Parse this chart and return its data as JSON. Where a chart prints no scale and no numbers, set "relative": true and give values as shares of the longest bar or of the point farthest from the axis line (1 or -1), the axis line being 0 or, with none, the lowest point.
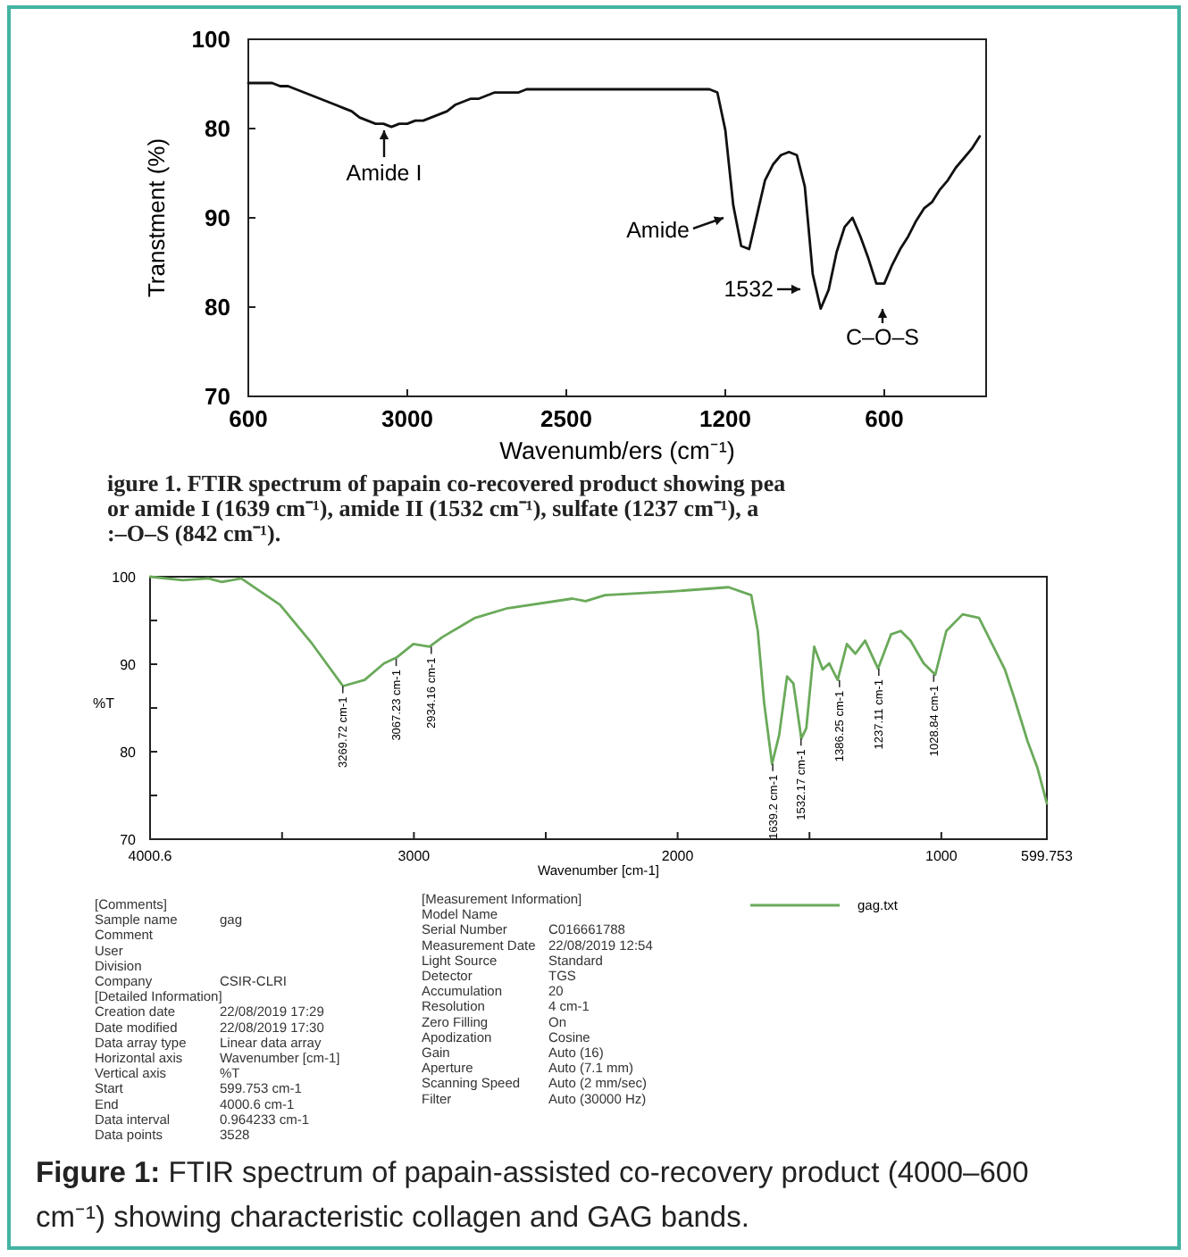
{
  "chart_data": [
    {
      "type": "line",
      "xlabel": "Wavenumb/ers (cm⁻¹)",
      "ylabel": "Transtment (%)",
      "relative": true,
      "categories": [
        "600",
        null,
        null,
        null,
        null,
        null,
        null,
        null,
        null,
        null,
        null,
        null,
        null,
        null,
        null,
        null,
        null,
        null,
        null,
        null,
        "3000",
        null,
        null,
        null,
        null,
        null,
        null,
        null,
        null,
        null,
        null,
        null,
        null,
        null,
        null,
        null,
        null,
        null,
        null,
        null,
        "2500",
        null,
        null,
        null,
        null,
        null,
        null,
        null,
        null,
        null,
        null,
        null,
        null,
        null,
        null,
        null,
        null,
        null,
        null,
        null,
        "1200",
        null,
        null,
        null,
        null,
        null,
        null,
        null,
        null,
        null,
        null,
        null,
        null,
        null,
        null,
        null,
        null,
        null,
        null,
        null,
        "600",
        null,
        null,
        null,
        null,
        null,
        null,
        null,
        null,
        null,
        null,
        null,
        null
      ],
      "series": [
        {
          "color": "#111111",
          "values": [
            1,
            1,
            1,
            1,
            0.99,
            0.99,
            0.98,
            0.97,
            0.96,
            0.95,
            0.94,
            0.93,
            0.92,
            0.91,
            0.89,
            0.88,
            0.87,
            0.87,
            0.86,
            0.87,
            0.87,
            0.88,
            0.88,
            0.89,
            0.9,
            0.91,
            0.93,
            0.94,
            0.95,
            0.95,
            0.96,
            0.97,
            0.97,
            0.97,
            0.97,
            0.98,
            0.98,
            0.98,
            0.98,
            0.98,
            0.98,
            0.98,
            0.98,
            0.98,
            0.98,
            0.98,
            0.98,
            0.98,
            0.98,
            0.98,
            0.98,
            0.98,
            0.98,
            0.98,
            0.98,
            0.98,
            0.98,
            0.98,
            0.98,
            0.97,
            0.85,
            0.61,
            0.48,
            0.47,
            0.58,
            0.69,
            0.74,
            0.77,
            0.78,
            0.77,
            0.67,
            0.39,
            0.28,
            0.34,
            0.46,
            0.54,
            0.57,
            0.51,
            0.44,
            0.36,
            0.36,
            0.42,
            0.47,
            0.51,
            0.56,
            0.6,
            0.62,
            0.66,
            0.69,
            0.73,
            0.76,
            0.79,
            0.83
          ]
        }
      ],
      "marker": "none",
      "line_style": "solid",
      "annotations": [
        "Amide I",
        "Amide",
        "1532",
        "C–O–S",
        "igure 1. FTIR spectrum of papain co-recovered product showing pea\nor amide I (1639 cm⁻¹), amide II (1532 cm⁻¹), sulfate (1237 cm⁻¹), a\n:–O–S (842 cm⁻¹).",
        "100",
        "80",
        "90",
        "80",
        "70"
      ]
    },
    {
      "type": "line",
      "xlabel": "Wavenumber [cm-1]",
      "ylabel": "%T",
      "xlim": [
        4000.6,
        599.753
      ],
      "ylim": [
        70,
        100
      ],
      "xticks": [
        4000.6,
        {
          "value": 3500,
          "label": null
        },
        3000,
        {
          "value": 2500,
          "label": null
        },
        2000,
        {
          "value": 1500,
          "label": null
        },
        1000,
        599.753
      ],
      "yticks": [
        70,
        {
          "value": 75,
          "label": null
        },
        80,
        {
          "value": 85,
          "label": null
        },
        90,
        {
          "value": 95,
          "label": null
        },
        100
      ],
      "series": [
        {
          "name": "gag.txt",
          "color": "#6aaa5a",
          "x": [
            4000,
            3877,
            3779,
            3729,
            3655,
            3508,
            3385,
            3269,
            3187,
            3113,
            3064,
            3002,
            2941,
            2892,
            2768,
            2645,
            2399,
            2349,
            2275,
            2029,
            1807,
            1721,
            1696,
            1672,
            1642,
            1615,
            1585,
            1561,
            1531,
            1512,
            1482,
            1450,
            1425,
            1393,
            1358,
            1326,
            1289,
            1240,
            1191,
            1154,
            1117,
            1067,
            1023,
            981,
            919,
            857,
            759,
            722,
            673,
            636,
            599.753
          ],
          "values": [
            100,
            99.6,
            99.8,
            99.4,
            99.8,
            96.8,
            92.3,
            87.5,
            88.2,
            90.1,
            90.8,
            92.3,
            92,
            93.1,
            95.3,
            96.4,
            97.5,
            97.2,
            97.9,
            98.3,
            98.8,
            97.9,
            93.8,
            85.6,
            78.6,
            81.9,
            88.6,
            87.8,
            81.5,
            82.7,
            92,
            89.4,
            90.1,
            88.2,
            92.3,
            91.2,
            92.7,
            89.5,
            93.4,
            93.8,
            92.7,
            90.1,
            88.8,
            93.8,
            95.7,
            95.3,
            89.4,
            86,
            81.2,
            78.2,
            74.1
          ]
        }
      ],
      "marker": "none",
      "line_style": "solid",
      "legend": "bottom right",
      "annotations": [
        {
          "text": "3269.72 cm-1",
          "x": 3269.72,
          "y": 87.5
        },
        {
          "text": "3067.23 cm-1",
          "x": 3067.23,
          "y": 90.6
        },
        {
          "text": "2934.16 cm-1",
          "x": 2934.16,
          "y": 92
        },
        {
          "text": "1639.2 cm-1",
          "x": 1639.2,
          "y": 78.6
        },
        {
          "text": "1532.17 cm-1",
          "x": 1532.17,
          "y": 81.5
        },
        {
          "text": "1386.25 cm-1",
          "x": 1386.25,
          "y": 88.2
        },
        {
          "text": "1237.11 cm-1",
          "x": 1237.11,
          "y": 89.5
        },
        {
          "text": "1028.84 cm-1",
          "x": 1028.84,
          "y": 88.8
        }
      ]
    },
    {
      "type": "other",
      "annotations": [
        "[Comments]",
        "Sample name\tgag",
        "Comment",
        "User",
        "Division",
        "Company\tCSIR-CLRI",
        "[Detailed Information]",
        "Creation date\t22/08/2019 17:29",
        "Date modified\t22/08/2019 17:30",
        "Data array type\tLinear data array",
        "Horizontal axis\tWavenumber [cm-1]",
        "Vertical axis\t%T",
        "Start\t599.753 cm-1",
        "End\t4000.6 cm-1",
        "Data interval\t0.964233 cm-1",
        "Data points\t3528"
      ]
    },
    {
      "type": "other",
      "annotations": [
        "[Measurement Information]",
        "Model Name",
        "Serial Number\tC016661788",
        "Measurement Date\t22/08/2019 12:54",
        "Light Source\tStandard",
        "Detector\tTGS",
        "Accumulation\t20",
        "Resolution\t4 cm-1",
        "Zero Filling\tOn",
        "Apodization\tCosine",
        "Gain\tAuto (16)",
        "Aperture\tAuto (7.1 mm)",
        "Scanning Speed\tAuto (2 mm/sec)",
        "Filter\tAuto (30000 Hz)"
      ]
    },
    {
      "type": "other",
      "annotations": [
        "Figure 1:",
        "FTIR spectrum of papain-assisted co-recovery product (4000–600 cm⁻¹) showing characteristic collagen and GAG bands."
      ]
    }
  ]
}
